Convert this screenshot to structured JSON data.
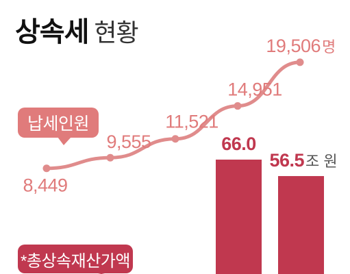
{
  "title": {
    "main": "상속세",
    "sub": "현황"
  },
  "badges": {
    "taxpayers": "납세인원",
    "assets": "*총상속재산가액"
  },
  "colors": {
    "line": "#e08c8c",
    "bar": "#c0384f",
    "badge_taxpayers": "#e07b7b",
    "badge_assets": "#c0384f",
    "label": "#e07b7b",
    "bar_label": "#c0384f"
  },
  "chart_data": [
    {
      "type": "line",
      "series": [
        {
          "name": "납세인원",
          "values": [
            8449,
            9555,
            11521,
            14951,
            19506
          ],
          "labels": [
            "8,449",
            "9,555",
            "11,521",
            "14,951",
            "19,506"
          ]
        }
      ],
      "unit": "명",
      "ylim": [
        6000,
        20000
      ]
    },
    {
      "type": "bar",
      "series": [
        {
          "name": "*총상속재산가액",
          "values": [
            66.0,
            56.5
          ],
          "labels": [
            "66.0",
            "56.5"
          ]
        }
      ],
      "unit": "조 원",
      "ylim": [
        0,
        85
      ]
    }
  ]
}
